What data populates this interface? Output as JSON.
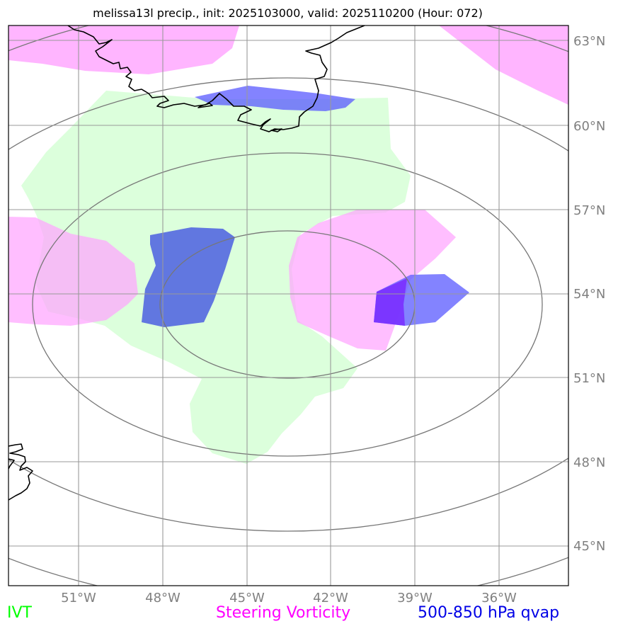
{
  "title": "melissa13l precip., init: 2025103000, valid: 2025110200 (Hour: 072)",
  "map": {
    "projection": "polar stereographic",
    "lon_ticks": [
      "51°W",
      "48°W",
      "45°W",
      "42°W",
      "39°W",
      "36°W"
    ],
    "lat_ticks": [
      "63°N",
      "60°N",
      "57°N",
      "54°N",
      "51°N",
      "48°N",
      "45°N"
    ],
    "grid_color": "#8c8c8c",
    "label_color": "#808080",
    "range_rings": 4,
    "coastlines": [
      "Greenland (southern tip)",
      "Newfoundland (east coast)"
    ]
  },
  "layers": [
    {
      "name": "IVT",
      "color": "#e0ffe0"
    },
    {
      "name": "Steering Vorticity",
      "color": "#ffb4ff"
    },
    {
      "name": "500-850 hPa qvap",
      "color": "#4b5fe0"
    }
  ],
  "legend": {
    "ivt": {
      "label": "IVT",
      "color": "#00ff00"
    },
    "vorticity": {
      "label": "Steering Vorticity",
      "color": "#ff00ff"
    },
    "qvap": {
      "label": "500-850 hPa qvap",
      "color": "#0000e6"
    }
  }
}
